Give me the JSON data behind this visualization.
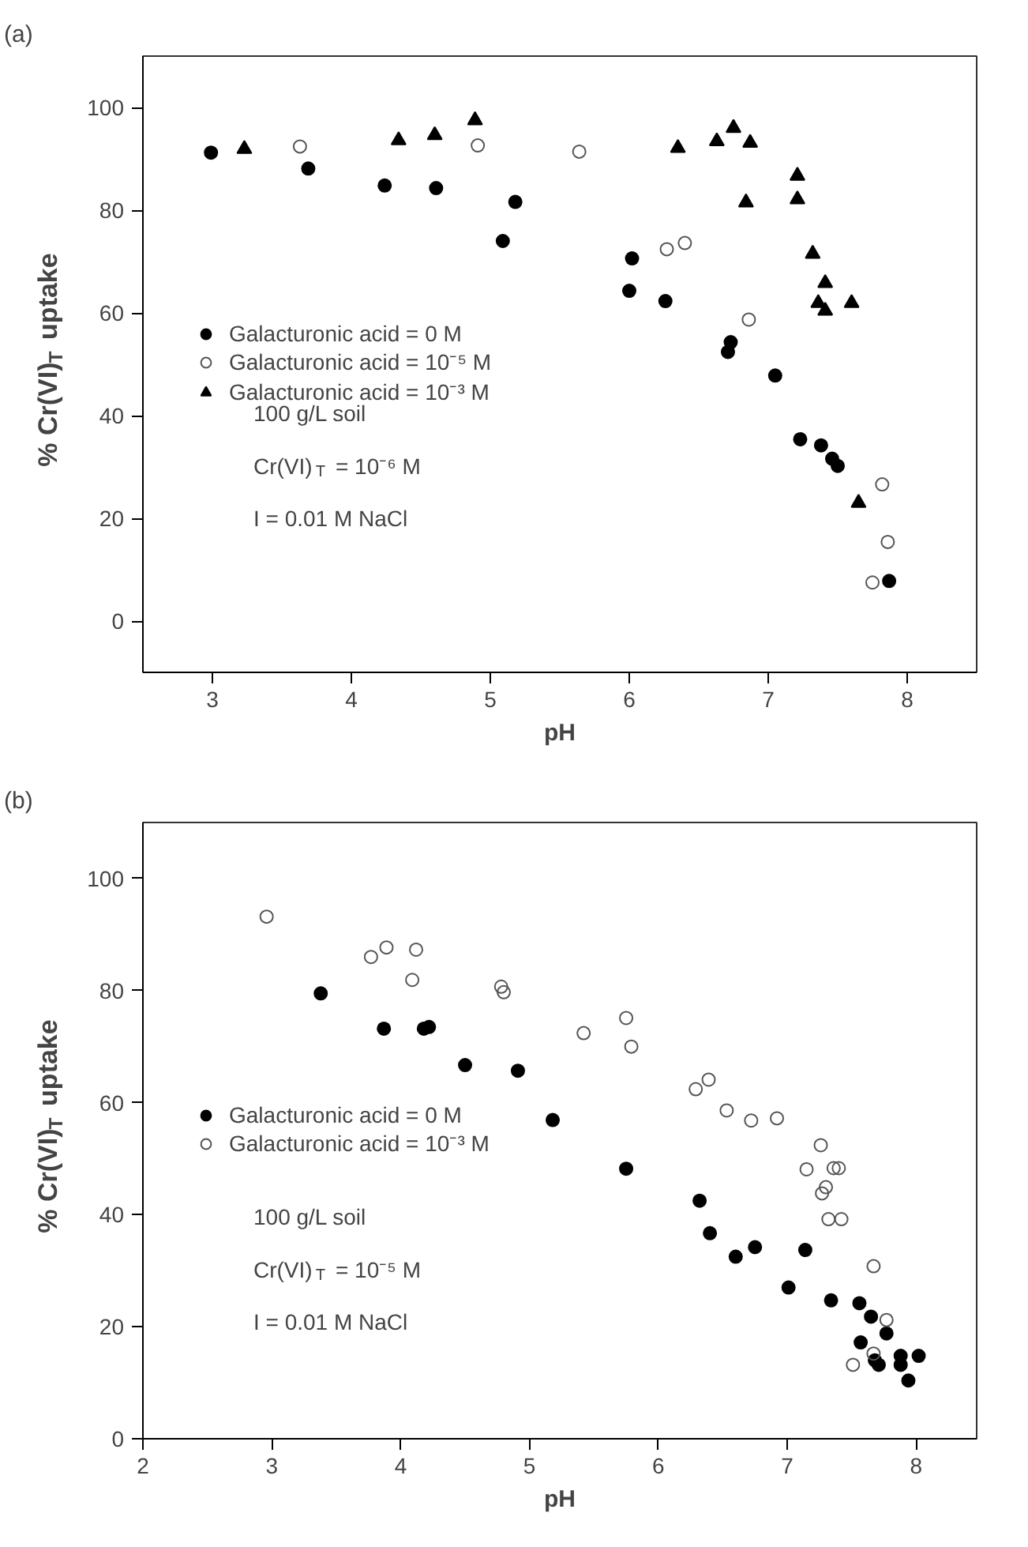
{
  "chart_data": [
    {
      "type": "scatter",
      "title": "(a)",
      "xlabel": "pH",
      "ylabel": "% Cr(VI)$_{T}$ uptake",
      "xlim": [
        2.5,
        8.5
      ],
      "ylim": [
        -10,
        110
      ],
      "xticks": [
        3,
        4,
        5,
        6,
        7,
        8
      ],
      "yticks": [
        0,
        20,
        40,
        60,
        80,
        100
      ],
      "grid": false,
      "legend": "left",
      "annotations": [
        "100 g/L soil",
        "Cr(VI)$_{T}$ = 10⁻⁶ M",
        "I = 0.01 M NaCl"
      ],
      "series": [
        {
          "name": "Galacturonic acid = 0 M",
          "color": "#000000",
          "marker": "circle",
          "x": [
            2.99,
            3.69,
            4.24,
            4.61,
            5.18,
            5.09,
            6.02,
            6.0,
            6.26,
            6.73,
            6.71,
            7.05,
            7.23,
            7.38,
            7.46,
            7.5,
            7.87
          ],
          "values": [
            91.2,
            88.1,
            84.8,
            84.3,
            81.6,
            74.0,
            70.6,
            64.3,
            62.3,
            54.3,
            52.4,
            47.8,
            35.4,
            34.2,
            31.6,
            30.2,
            7.8
          ]
        },
        {
          "name": "Galacturonic acid = 10⁻⁵ M",
          "color": "#555555",
          "marker": "circle_open",
          "x": [
            3.63,
            4.91,
            5.64,
            6.27,
            6.4,
            6.86,
            7.82,
            7.86,
            7.75
          ],
          "values": [
            92.4,
            92.6,
            91.4,
            72.4,
            73.6,
            58.7,
            26.6,
            15.4,
            7.5
          ]
        },
        {
          "name": "Galacturonic acid = 10⁻³ M",
          "color": "#000000",
          "marker": "triangle",
          "x": [
            3.23,
            4.34,
            4.6,
            4.89,
            6.35,
            6.63,
            6.75,
            6.87,
            6.84,
            7.21,
            7.21,
            7.32,
            7.41,
            7.36,
            7.41,
            7.6,
            7.65
          ],
          "values": [
            91.9,
            93.6,
            94.6,
            97.5,
            92.1,
            93.4,
            96.0,
            93.1,
            81.5,
            86.7,
            82.1,
            71.5,
            65.8,
            61.9,
            60.4,
            61.9,
            23.0
          ]
        }
      ]
    },
    {
      "type": "scatter",
      "title": "(b)",
      "xlabel": "pH",
      "ylabel": "% Cr(VI)$_{T}$ uptake",
      "xlim": [
        2,
        8.47
      ],
      "ylim": [
        0,
        110
      ],
      "xticks": [
        2,
        3,
        4,
        5,
        6,
        7,
        8
      ],
      "yticks": [
        0,
        20,
        40,
        60,
        80,
        100
      ],
      "grid": false,
      "legend": "left",
      "annotations": [
        "100 g/L soil",
        "Cr(VI)$_{T}$ = 10⁻⁵ M",
        "I = 0.01 M NaCl"
      ],
      "series": [
        {
          "name": "Galacturonic acid = 0 M",
          "color": "#000000",
          "marker": "circle",
          "x": [
            3.38,
            3.87,
            4.18,
            4.22,
            4.5,
            4.91,
            5.18,
            5.75,
            6.32,
            6.4,
            6.6,
            6.75,
            7.14,
            7.01,
            7.34,
            7.56,
            7.65,
            7.77,
            7.57,
            7.68,
            7.71,
            7.88,
            7.88,
            8.02,
            7.94
          ],
          "values": [
            79.5,
            73.2,
            73.2,
            73.5,
            66.7,
            65.7,
            56.9,
            48.2,
            42.5,
            36.7,
            32.5,
            34.2,
            33.7,
            27.0,
            24.7,
            24.2,
            21.8,
            18.8,
            17.2,
            14.0,
            13.2,
            14.8,
            13.2,
            14.8,
            10.4
          ]
        },
        {
          "name": "Galacturonic acid = 10⁻³ M",
          "color": "#555555",
          "marker": "circle_open",
          "x": [
            2.96,
            3.77,
            3.89,
            4.12,
            4.09,
            4.78,
            4.8,
            5.42,
            5.75,
            5.79,
            6.29,
            6.39,
            6.53,
            6.72,
            6.92,
            7.26,
            7.15,
            7.36,
            7.4,
            7.3,
            7.27,
            7.32,
            7.42,
            7.67,
            7.77,
            7.67,
            7.51
          ],
          "values": [
            93.2,
            86.0,
            87.7,
            87.3,
            81.9,
            80.7,
            79.7,
            72.4,
            75.1,
            70.0,
            62.4,
            64.1,
            58.6,
            56.8,
            57.2,
            52.4,
            48.1,
            48.3,
            48.3,
            44.9,
            43.8,
            39.2,
            39.2,
            30.8,
            21.2,
            15.2,
            13.2
          ]
        }
      ]
    }
  ]
}
